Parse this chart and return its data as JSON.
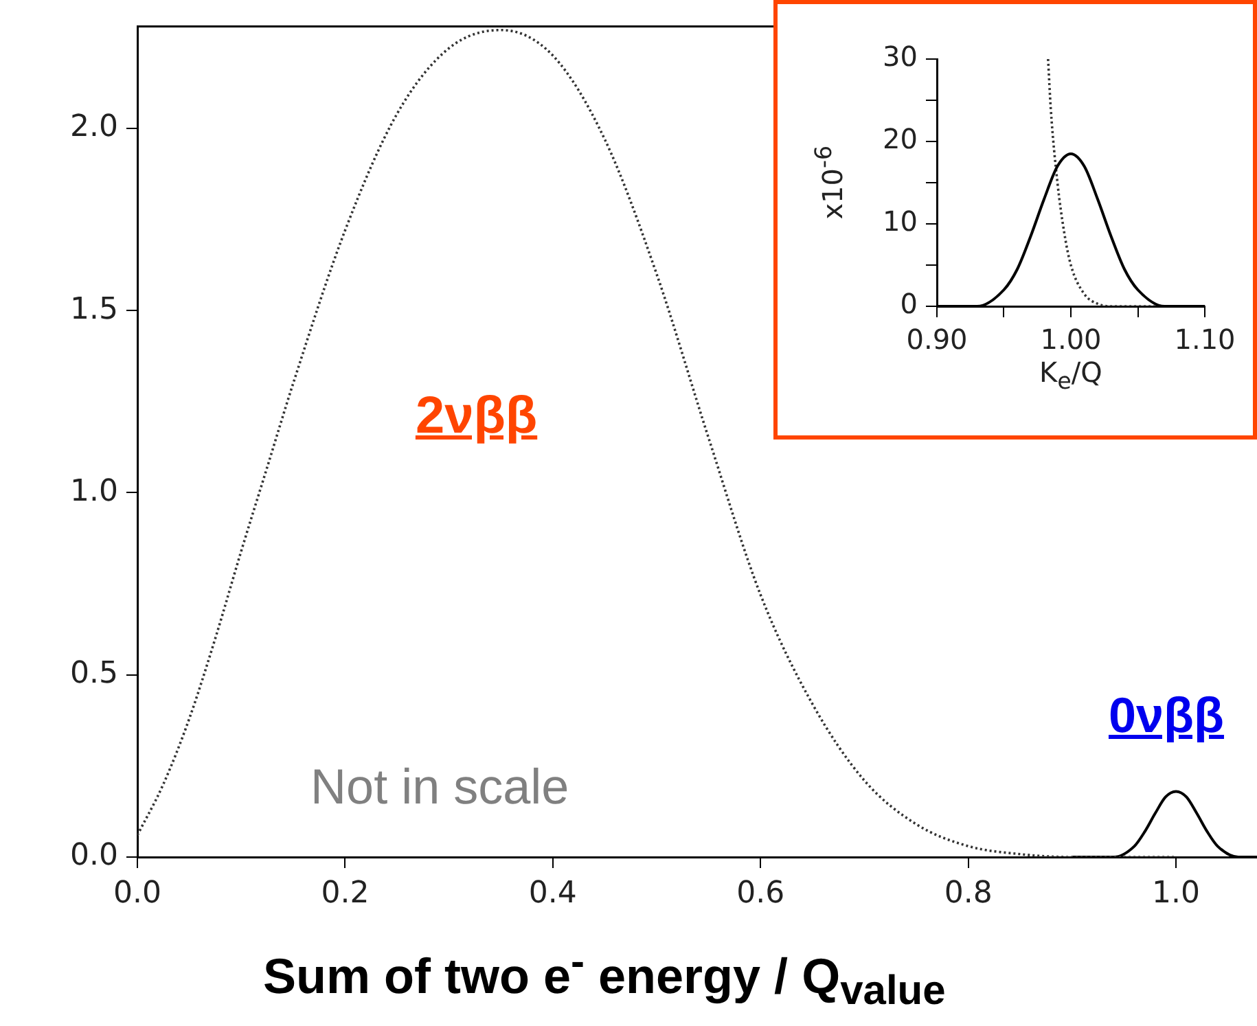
{
  "chart_data": [
    {
      "type": "line",
      "xlabel": "Sum of two e$^{-}$ energy / Q$_{value}$",
      "xlim": [
        0,
        1.078
      ],
      "ylim": [
        0,
        2.28
      ],
      "xticks": [
        {
          "value": 0,
          "label": "0.0"
        },
        {
          "value": 0.2,
          "label": "0.2"
        },
        {
          "value": 0.4,
          "label": "0.4"
        },
        {
          "value": 0.6,
          "label": "0.6"
        },
        {
          "value": 0.8,
          "label": "0.8"
        },
        {
          "value": 1,
          "label": "1.0"
        }
      ],
      "yticks": [
        {
          "value": 0,
          "label": "0.0"
        },
        {
          "value": 0.5,
          "label": "0.5"
        },
        {
          "value": 1,
          "label": "1.0"
        },
        {
          "value": 1.5,
          "label": "1.5"
        },
        {
          "value": 2,
          "label": "2.0"
        }
      ],
      "marker": "none",
      "grid": false,
      "legend": false,
      "annotations": [
        "2νββ",
        "0νββ",
        "Not in scale"
      ],
      "series": [
        {
          "color": "#333333",
          "line_style": "dotted",
          "x": [
            0,
            0.025,
            0.05,
            0.075,
            0.1,
            0.125,
            0.15,
            0.2,
            0.25,
            0.3,
            0.35,
            0.4,
            0.45,
            0.5,
            0.55,
            0.6,
            0.65,
            0.7,
            0.75,
            0.8,
            0.85,
            0.9,
            0.95,
            1.0
          ],
          "values": [
            0.06,
            0.2,
            0.38,
            0.6,
            0.84,
            1.07,
            1.3,
            1.72,
            2.04,
            2.22,
            2.27,
            2.2,
            1.97,
            1.6,
            1.15,
            0.72,
            0.42,
            0.21,
            0.09,
            0.03,
            0.008,
            0,
            0,
            0
          ]
        },
        {
          "color": "#000000",
          "line_style": "solid",
          "x": [
            0.9,
            0.94,
            0.96,
            0.97,
            0.98,
            0.99,
            1.0,
            1.01,
            1.02,
            1.03,
            1.04,
            1.06,
            1.078
          ],
          "values": [
            0,
            0,
            0.03,
            0.07,
            0.12,
            0.165,
            0.18,
            0.165,
            0.12,
            0.07,
            0.03,
            0,
            0
          ]
        }
      ]
    },
    {
      "type": "line",
      "xlabel": "K$_{e}$/Q",
      "ylabel": "x10$^{-6}$",
      "xlim": [
        0.9,
        1.1
      ],
      "ylim": [
        0,
        30
      ],
      "xticks": [
        {
          "value": 0.9,
          "label": "0.90"
        },
        {
          "value": 0.95,
          "label": null
        },
        {
          "value": 1,
          "label": "1.00"
        },
        {
          "value": 1.05,
          "label": null
        },
        {
          "value": 1.1,
          "label": "1.10"
        }
      ],
      "yticks": [
        0,
        {
          "value": 5,
          "label": null
        },
        10,
        {
          "value": 15,
          "label": null
        },
        20,
        {
          "value": 25,
          "label": null
        },
        30
      ],
      "marker": "none",
      "grid": false,
      "legend": false,
      "series": [
        {
          "color": "#000000",
          "line_style": "solid",
          "x": [
            0.9,
            0.93,
            0.95,
            0.96,
            0.97,
            0.98,
            0.99,
            1.0,
            1.01,
            1.02,
            1.03,
            1.04,
            1.05,
            1.07,
            1.1
          ],
          "values": [
            0,
            0,
            2,
            4.5,
            8.5,
            13,
            17,
            18.5,
            17,
            13,
            8.5,
            4.5,
            2,
            0,
            0
          ]
        },
        {
          "color": "#333333",
          "line_style": "dotted",
          "x": [
            0.983,
            0.985,
            0.99,
            0.995,
            1.0,
            1.01,
            1.02,
            1.03,
            1.1
          ],
          "values": [
            30,
            24,
            15,
            9,
            5,
            1.5,
            0.3,
            0,
            0
          ]
        }
      ]
    }
  ]
}
